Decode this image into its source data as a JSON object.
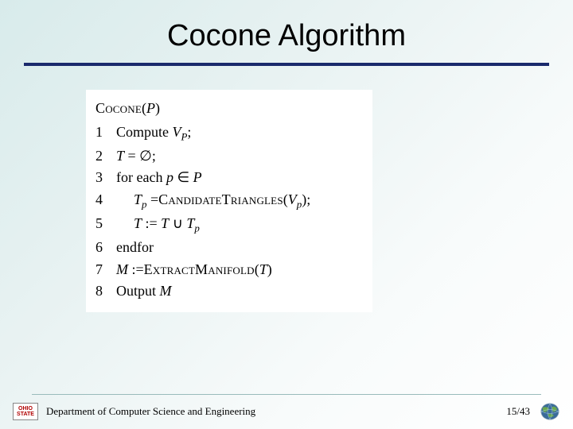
{
  "title": "Cocone Algorithm",
  "algorithm": {
    "name_sc": "Cocone",
    "arg": "P",
    "lines": [
      {
        "n": "1",
        "indent": 1,
        "html": "Compute <span class='it'>V<span class='sub'>P</span></span>;"
      },
      {
        "n": "2",
        "indent": 1,
        "html": "<span class='it'>T</span> = ∅;"
      },
      {
        "n": "3",
        "indent": 1,
        "html": "for each <span class='it'>p</span> ∈ <span class='it'>P</span>"
      },
      {
        "n": "4",
        "indent": 2,
        "html": "<span class='it'>T<span class='sub'>p</span></span> =<span class='sc'>CandidateTriangles</span>(<span class='it'>V<span class='sub'>p</span></span>);"
      },
      {
        "n": "5",
        "indent": 2,
        "html": "<span class='it'>T</span> := <span class='it'>T</span> ∪ <span class='it'>T<span class='sub'>p</span></span>"
      },
      {
        "n": "6",
        "indent": 1,
        "html": "endfor"
      },
      {
        "n": "7",
        "indent": 1,
        "html": "<span class='it'>M</span> :=<span class='sc'>ExtractManifold</span>(<span class='it'>T</span>)"
      },
      {
        "n": "8",
        "indent": 1,
        "html": "Output <span class='it'>M</span>"
      }
    ]
  },
  "footer": {
    "dept": "Department of Computer Science and Engineering",
    "page": "15/43",
    "left_logo_text": "OHIO\nSTATE"
  },
  "colors": {
    "rule": "#1a2a6c",
    "bg_grad_from": "#d8ebeb",
    "bg_grad_to": "#ffffff"
  }
}
